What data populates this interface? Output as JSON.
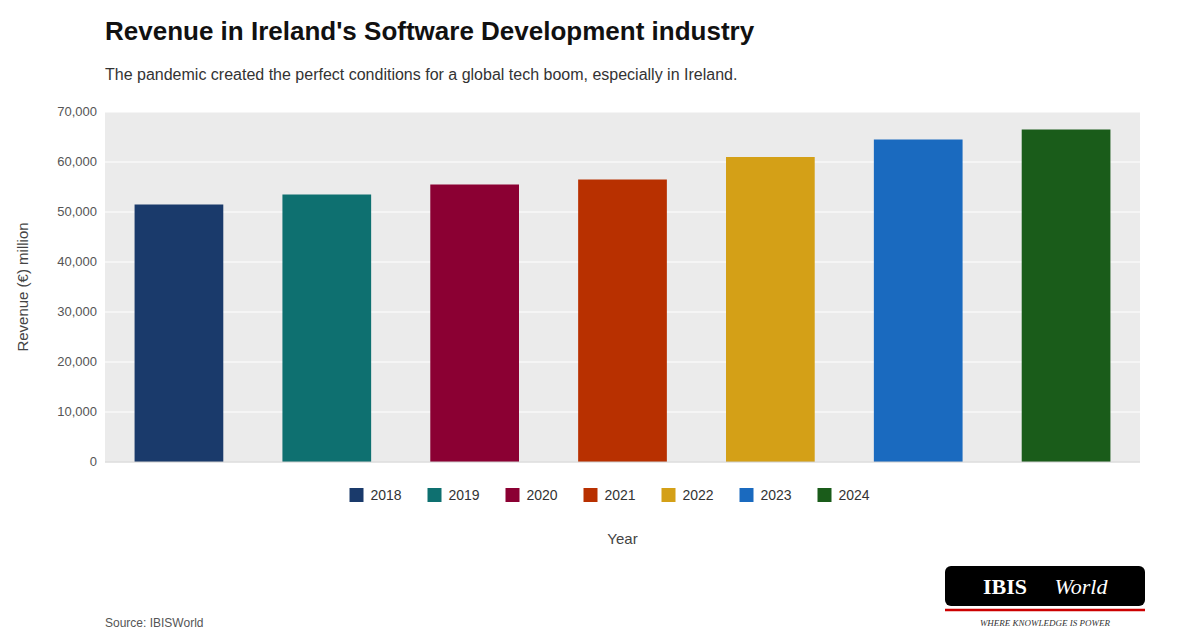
{
  "chart_data": {
    "type": "bar",
    "title": "Revenue in Ireland's Software Development industry",
    "subtitle": "The pandemic created the perfect conditions for a global tech boom, especially in Ireland.",
    "xlabel": "Year",
    "ylabel": "Revenue (€) million",
    "source": "Source: IBISWorld",
    "annotations": [
      "IBIS",
      "World",
      "WHERE KNOWLEDGE IS POWER"
    ],
    "categories": [
      "2018",
      "2019",
      "2020",
      "2021",
      "2022",
      "2023",
      "2024"
    ],
    "values": [
      51500,
      53500,
      55500,
      56500,
      61000,
      64500,
      66500
    ],
    "colors": [
      "#1a3a6b",
      "#0e7070",
      "#8b0033",
      "#b83000",
      "#d4a017",
      "#1a6abf",
      "#1a5c1a"
    ],
    "ylim": [
      0,
      70000
    ],
    "yticks": [
      0,
      {
        "value": 10000,
        "label": "10,000"
      },
      {
        "value": 20000,
        "label": "20,000"
      },
      {
        "value": 30000,
        "label": "30,000"
      },
      {
        "value": 40000,
        "label": "40,000"
      },
      {
        "value": 50000,
        "label": "50,000"
      },
      {
        "value": 60000,
        "label": "60,000"
      },
      {
        "value": 70000,
        "label": "70,000"
      }
    ],
    "grid": true,
    "legend": "bottom",
    "tick_labels": "y"
  }
}
